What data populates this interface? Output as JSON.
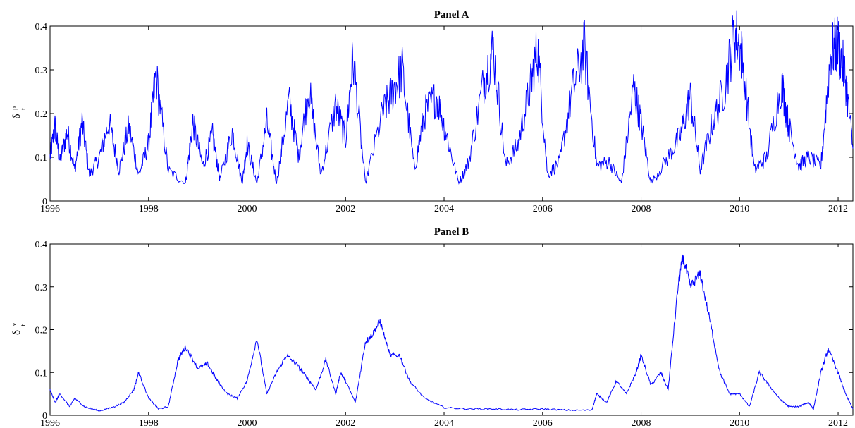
{
  "chart_data": [
    {
      "type": "line",
      "title": "Panel A",
      "ylabel": {
        "symbol": "δ",
        "superscript": "p",
        "subscript": "t"
      },
      "xlim": [
        1996,
        2012.3
      ],
      "ylim": [
        0,
        0.4
      ],
      "xticks": [
        "1996",
        "1998",
        "2000",
        "2002",
        "2004",
        "2006",
        "2008",
        "2010",
        "2012"
      ],
      "yticks": [
        "0",
        "0.1",
        "0.2",
        "0.3",
        "0.4"
      ],
      "series_color": "#0000ff",
      "series": [
        {
          "x": [
            1996.0,
            1996.1,
            1996.2,
            1996.35,
            1996.5,
            1996.65,
            1996.8,
            1997.0,
            1997.2,
            1997.4,
            1997.6,
            1997.8,
            1998.0,
            1998.15,
            1998.4,
            1998.75,
            1998.9,
            1999.1,
            1999.3,
            1999.45,
            1999.7,
            1999.9,
            2000.0,
            2000.2,
            2000.4,
            2000.6,
            2000.85,
            2001.05,
            2001.25,
            2001.5,
            2001.8,
            2002.0,
            2002.15,
            2002.4,
            2002.75,
            2002.95,
            2003.15,
            2003.4,
            2003.6,
            2003.85,
            2004.05,
            2004.3,
            2004.5,
            2004.8,
            2005.0,
            2005.25,
            2005.5,
            2005.75,
            2005.9,
            2006.1,
            2006.35,
            2006.6,
            2006.85,
            2007.1,
            2007.35,
            2007.6,
            2007.85,
            2008.0,
            2008.2,
            2008.55,
            2008.8,
            2009.0,
            2009.2,
            2009.45,
            2009.7,
            2009.9,
            2010.05,
            2010.3,
            2010.55,
            2010.85,
            2011.0,
            2011.2,
            2011.4,
            2011.65,
            2011.85,
            2012.0,
            2012.15,
            2012.3
          ],
          "y": [
            0.1,
            0.17,
            0.09,
            0.16,
            0.07,
            0.18,
            0.06,
            0.1,
            0.18,
            0.07,
            0.17,
            0.06,
            0.13,
            0.29,
            0.07,
            0.04,
            0.18,
            0.08,
            0.15,
            0.05,
            0.16,
            0.04,
            0.13,
            0.04,
            0.18,
            0.04,
            0.23,
            0.1,
            0.26,
            0.06,
            0.22,
            0.14,
            0.33,
            0.04,
            0.2,
            0.25,
            0.3,
            0.07,
            0.2,
            0.24,
            0.15,
            0.04,
            0.09,
            0.27,
            0.35,
            0.08,
            0.13,
            0.26,
            0.35,
            0.06,
            0.09,
            0.25,
            0.35,
            0.08,
            0.09,
            0.04,
            0.26,
            0.18,
            0.04,
            0.1,
            0.15,
            0.24,
            0.07,
            0.18,
            0.26,
            0.39,
            0.33,
            0.07,
            0.1,
            0.27,
            0.17,
            0.08,
            0.1,
            0.08,
            0.34,
            0.36,
            0.28,
            0.12
          ]
        }
      ]
    },
    {
      "type": "line",
      "title": "Panel B",
      "ylabel": {
        "symbol": "δ",
        "superscript": "v",
        "subscript": "t"
      },
      "xlim": [
        1996,
        2012.3
      ],
      "ylim": [
        0,
        0.4
      ],
      "xticks": [
        "1996",
        "1998",
        "2000",
        "2002",
        "2004",
        "2006",
        "2008",
        "2010",
        "2012"
      ],
      "yticks": [
        "0",
        "0.1",
        "0.2",
        "0.3",
        "0.4"
      ],
      "series_color": "#0000ff",
      "series": [
        {
          "x": [
            1996.0,
            1996.1,
            1996.2,
            1996.4,
            1996.5,
            1996.7,
            1997.0,
            1997.3,
            1997.5,
            1997.7,
            1997.8,
            1998.0,
            1998.2,
            1998.4,
            1998.6,
            1998.75,
            1999.0,
            1999.2,
            1999.4,
            1999.6,
            1999.8,
            2000.0,
            2000.2,
            2000.4,
            2000.6,
            2000.8,
            2001.0,
            2001.2,
            2001.4,
            2001.6,
            2001.8,
            2001.9,
            2002.0,
            2002.2,
            2002.4,
            2002.55,
            2002.7,
            2002.9,
            2003.1,
            2003.3,
            2003.6,
            2004.0,
            2004.5,
            2005.0,
            2005.5,
            2006.0,
            2006.5,
            2007.0,
            2007.1,
            2007.3,
            2007.5,
            2007.7,
            2007.9,
            2008.0,
            2008.2,
            2008.4,
            2008.55,
            2008.75,
            2008.85,
            2009.0,
            2009.2,
            2009.4,
            2009.6,
            2009.8,
            2010.0,
            2010.2,
            2010.4,
            2010.6,
            2010.8,
            2011.0,
            2011.2,
            2011.4,
            2011.5,
            2011.65,
            2011.8,
            2012.0,
            2012.15,
            2012.3
          ],
          "y": [
            0.06,
            0.03,
            0.05,
            0.02,
            0.04,
            0.02,
            0.01,
            0.02,
            0.03,
            0.06,
            0.1,
            0.04,
            0.015,
            0.02,
            0.13,
            0.16,
            0.11,
            0.12,
            0.08,
            0.05,
            0.04,
            0.08,
            0.18,
            0.05,
            0.1,
            0.14,
            0.12,
            0.09,
            0.06,
            0.13,
            0.05,
            0.1,
            0.08,
            0.03,
            0.17,
            0.19,
            0.22,
            0.14,
            0.14,
            0.08,
            0.04,
            0.018,
            0.015,
            0.015,
            0.013,
            0.015,
            0.012,
            0.012,
            0.05,
            0.03,
            0.08,
            0.05,
            0.1,
            0.14,
            0.07,
            0.1,
            0.06,
            0.3,
            0.37,
            0.3,
            0.33,
            0.22,
            0.1,
            0.05,
            0.05,
            0.02,
            0.1,
            0.07,
            0.04,
            0.02,
            0.02,
            0.03,
            0.015,
            0.1,
            0.155,
            0.1,
            0.05,
            0.015
          ]
        }
      ]
    }
  ]
}
